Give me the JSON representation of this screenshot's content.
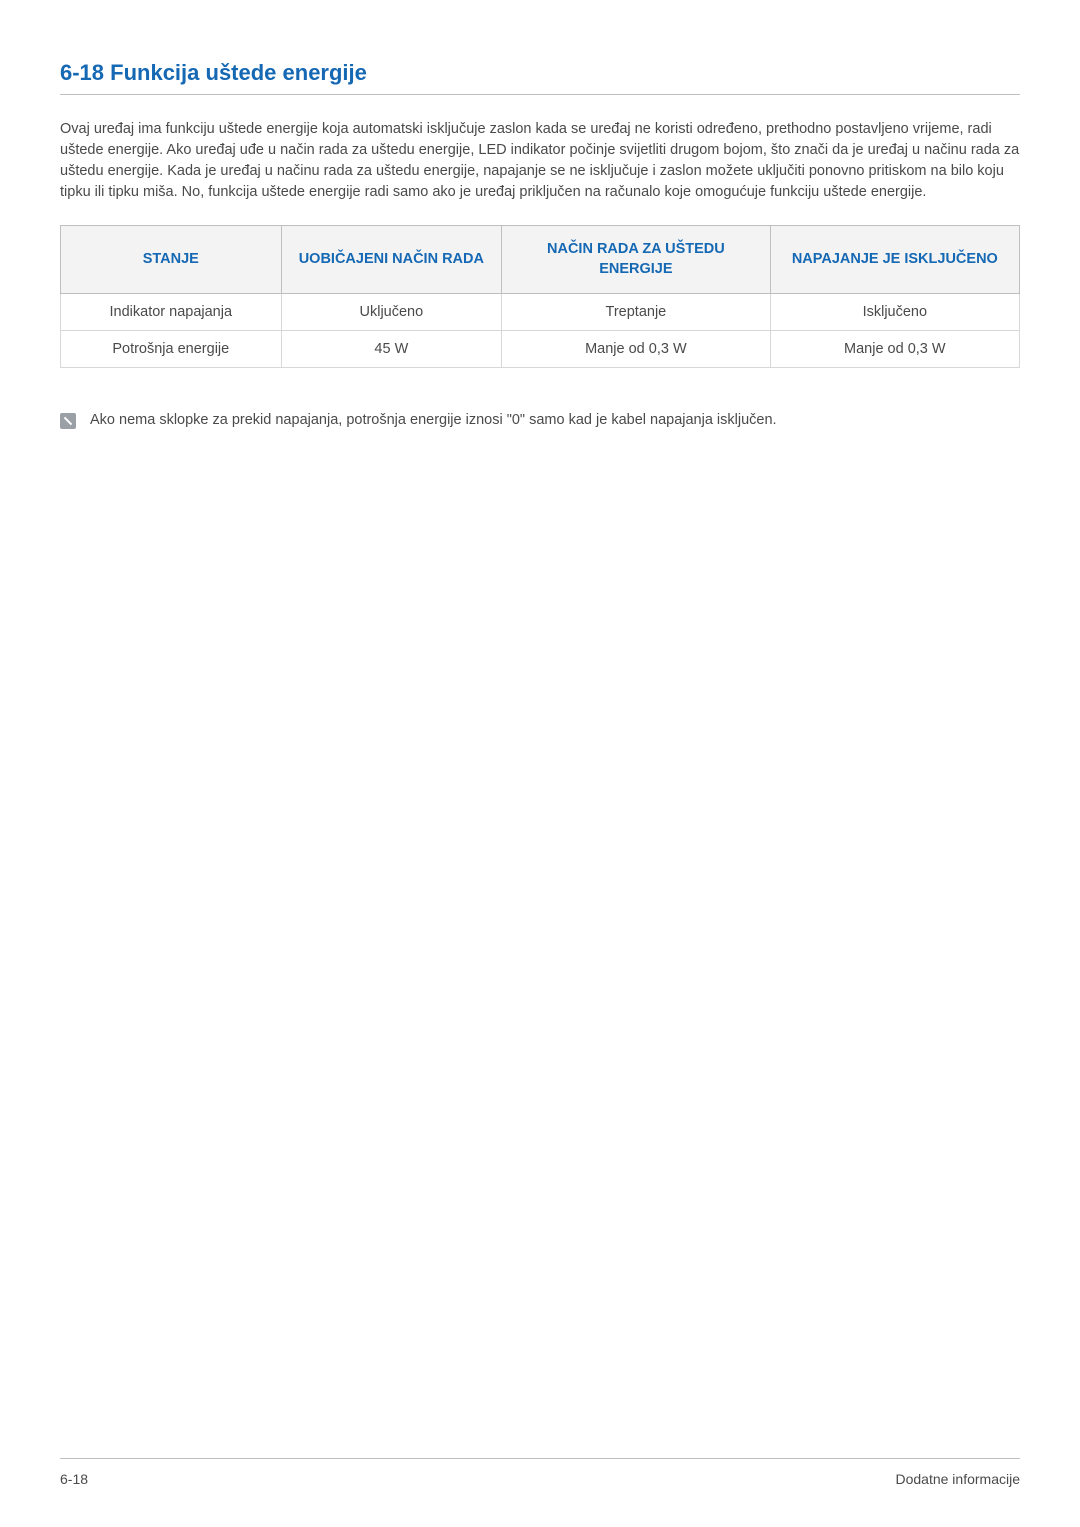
{
  "heading": "6-18   Funkcija uštede energije",
  "paragraph": "Ovaj uređaj ima funkciju uštede energije koja automatski isključuje zaslon kada se uređaj ne koristi određeno, prethodno postavljeno vrijeme, radi uštede energije. Ako uređaj uđe u način rada za uštedu energije, LED indikator počinje svijetliti drugom bojom, što znači da je uređaj u načinu rada za uštedu energije. Kada je uređaj u načinu rada za uštedu energije, napajanje se ne isključuje i zaslon možete uključiti ponovno pritiskom na bilo koju tipku ili tipku miša. No, funkcija uštede energije radi samo ako je uređaj priključen na računalo koje omogućuje funkciju uštede energije.",
  "table": {
    "headers": [
      "STANJE",
      "UOBIČAJENI NAČIN RADA",
      "NAČIN RADA ZA UŠTEDU ENERGIJE",
      "NAPAJANJE JE ISKLJUČENO"
    ],
    "rows": [
      [
        "Indikator napajanja",
        "Uključeno",
        "Treptanje",
        "Isključeno"
      ],
      [
        "Potrošnja energije",
        "45 W",
        "Manje od 0,3 W",
        "Manje od 0,3 W"
      ]
    ],
    "col_widths": [
      "23%",
      "23%",
      "28%",
      "26%"
    ],
    "header_bg": "#f3f3f4",
    "header_color": "#1568b3",
    "border_color": "#bfbfbf",
    "cell_border_color": "#d7d7d7"
  },
  "note": "Ako nema sklopke za prekid napajanja, potrošnja energije iznosi \"0\" samo kad je kabel napajanja isključen.",
  "footer_left": "6-18",
  "footer_right": "Dodatne informacije",
  "colors": {
    "accent": "#1568b3",
    "text": "#4a4a4a",
    "rule": "#bfbfbf",
    "note_icon_bg": "#9aa0a6",
    "page_bg": "#ffffff"
  }
}
